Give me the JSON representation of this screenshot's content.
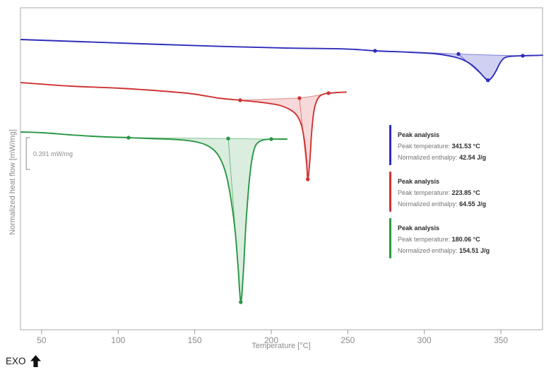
{
  "chart_data": {
    "type": "line",
    "title": "",
    "xlabel": "Temperature [°C]",
    "ylabel": "Normalized heat flow [mW/mg]",
    "x_ticks": [
      50,
      100,
      150,
      200,
      250,
      300,
      350
    ],
    "x_range_c": [
      36.2,
      377.2
    ],
    "grid": false,
    "legend_position": "right-inside",
    "exo_label": "EXO",
    "scale_bar": {
      "label": "0.391 mW/mg",
      "value_mw_per_mg": 0.391,
      "temp_c": 40,
      "hf_top": 2.365,
      "hf_bottom": 1.974
    },
    "series": [
      {
        "name": "curve-blue",
        "color": "#2d2dbb",
        "fill": "rgba(100,100,215,0.30)",
        "peak_temp_c": 341.53,
        "normalized_enthalpy_j_per_g": 42.54,
        "curve": [
          [
            36.6,
            3.574
          ],
          [
            68.9,
            3.552
          ],
          [
            115.1,
            3.522
          ],
          [
            161.2,
            3.493
          ],
          [
            207.4,
            3.47
          ],
          [
            248.9,
            3.457
          ],
          [
            267.8,
            3.435
          ],
          [
            290.4,
            3.417
          ],
          [
            306.6,
            3.4
          ],
          [
            318.1,
            3.365
          ],
          [
            325.0,
            3.326
          ],
          [
            331.0,
            3.261
          ],
          [
            335.6,
            3.183
          ],
          [
            338.9,
            3.113
          ],
          [
            341.53,
            3.072
          ],
          [
            344.0,
            3.104
          ],
          [
            346.7,
            3.183
          ],
          [
            349.5,
            3.287
          ],
          [
            352.3,
            3.348
          ],
          [
            355.5,
            3.365
          ],
          [
            360.1,
            3.371
          ],
          [
            364.3,
            3.374
          ],
          [
            371.2,
            3.377
          ],
          [
            377.2,
            3.381
          ]
        ],
        "baseline": [
          [
            267.8,
            3.435
          ],
          [
            290.0,
            3.42
          ],
          [
            310.0,
            3.407
          ],
          [
            322.3,
            3.396
          ],
          [
            340.0,
            3.385
          ],
          [
            355.0,
            3.377
          ],
          [
            364.3,
            3.374
          ]
        ],
        "peak_line": [
          [
            322.3,
            3.396
          ],
          [
            341.53,
            3.072
          ]
        ],
        "markers": [
          [
            267.8,
            3.435
          ],
          [
            322.3,
            3.396
          ],
          [
            364.3,
            3.374
          ],
          [
            341.53,
            3.072
          ]
        ]
      },
      {
        "name": "curve-red",
        "color": "#cf3434",
        "fill": "rgba(219,80,80,0.22)",
        "peak_temp_c": 223.85,
        "normalized_enthalpy_j_per_g": 64.55,
        "curve": [
          [
            36.6,
            3.043
          ],
          [
            68.9,
            3.0
          ],
          [
            101.2,
            2.974
          ],
          [
            128.9,
            2.939
          ],
          [
            148.8,
            2.904
          ],
          [
            165.8,
            2.852
          ],
          [
            179.7,
            2.826
          ],
          [
            193.5,
            2.8
          ],
          [
            205.1,
            2.765
          ],
          [
            212.0,
            2.713
          ],
          [
            216.6,
            2.643
          ],
          [
            219.8,
            2.513
          ],
          [
            221.7,
            2.322
          ],
          [
            223.1,
            2.078
          ],
          [
            223.85,
            1.852
          ],
          [
            225.2,
            2.078
          ],
          [
            226.3,
            2.409
          ],
          [
            227.7,
            2.67
          ],
          [
            229.5,
            2.809
          ],
          [
            231.8,
            2.878
          ],
          [
            234.6,
            2.904
          ],
          [
            237.4,
            2.913
          ],
          [
            243.4,
            2.922
          ],
          [
            248.9,
            2.926
          ]
        ],
        "baseline": [
          [
            179.7,
            2.826
          ],
          [
            197.0,
            2.839
          ],
          [
            208.0,
            2.845
          ],
          [
            218.4,
            2.852
          ],
          [
            225.5,
            2.87
          ],
          [
            231.0,
            2.889
          ],
          [
            237.4,
            2.913
          ]
        ],
        "peak_line": [
          [
            218.4,
            2.852
          ],
          [
            223.85,
            1.852
          ]
        ],
        "markers": [
          [
            179.7,
            2.826
          ],
          [
            218.4,
            2.852
          ],
          [
            237.4,
            2.913
          ],
          [
            223.85,
            1.852
          ]
        ]
      },
      {
        "name": "curve-green",
        "color": "#2a9745",
        "fill": "rgba(85,175,105,0.22)",
        "peak_temp_c": 180.06,
        "normalized_enthalpy_j_per_g": 154.51,
        "curve": [
          [
            36.6,
            2.435
          ],
          [
            50.5,
            2.426
          ],
          [
            68.9,
            2.4
          ],
          [
            87.4,
            2.378
          ],
          [
            106.8,
            2.365
          ],
          [
            124.3,
            2.352
          ],
          [
            137.2,
            2.343
          ],
          [
            145.5,
            2.33
          ],
          [
            152.0,
            2.309
          ],
          [
            157.1,
            2.278
          ],
          [
            161.7,
            2.226
          ],
          [
            165.4,
            2.148
          ],
          [
            168.6,
            2.026
          ],
          [
            171.4,
            1.843
          ],
          [
            174.2,
            1.539
          ],
          [
            176.5,
            1.191
          ],
          [
            178.3,
            0.774
          ],
          [
            180.06,
            0.339
          ],
          [
            181.8,
            0.713
          ],
          [
            183.4,
            1.278
          ],
          [
            185.0,
            1.696
          ],
          [
            186.6,
            1.991
          ],
          [
            188.2,
            2.174
          ],
          [
            189.8,
            2.27
          ],
          [
            191.9,
            2.313
          ],
          [
            194.0,
            2.332
          ],
          [
            196.8,
            2.343
          ],
          [
            200.0,
            2.348
          ],
          [
            205.1,
            2.348
          ],
          [
            210.2,
            2.348
          ]
        ],
        "baseline": [
          [
            106.8,
            2.365
          ],
          [
            140.0,
            2.36
          ],
          [
            171.9,
            2.355
          ],
          [
            200.0,
            2.348
          ]
        ],
        "peak_line": [
          [
            171.9,
            2.355
          ],
          [
            180.06,
            0.339
          ]
        ],
        "markers": [
          [
            106.8,
            2.365
          ],
          [
            171.9,
            2.355
          ],
          [
            200.0,
            2.348
          ],
          [
            180.06,
            0.339
          ]
        ]
      }
    ],
    "peaks": [
      {
        "color": "#2d2dbb",
        "title": "Peak analysis",
        "temp_label": "Peak temperature:",
        "temp_value": "341.53 °C",
        "enthalpy_label": "Normalized enthalpy:",
        "enthalpy_value": "42.54 J/g"
      },
      {
        "color": "#cf3434",
        "title": "Peak analysis",
        "temp_label": "Peak temperature:",
        "temp_value": "223.85 °C",
        "enthalpy_label": "Normalized enthalpy:",
        "enthalpy_value": "64.55 J/g"
      },
      {
        "color": "#2a9745",
        "title": "Peak analysis",
        "temp_label": "Peak temperature:",
        "temp_value": "180.06 °C",
        "enthalpy_label": "Normalized enthalpy:",
        "enthalpy_value": "154.51 J/g"
      }
    ]
  }
}
